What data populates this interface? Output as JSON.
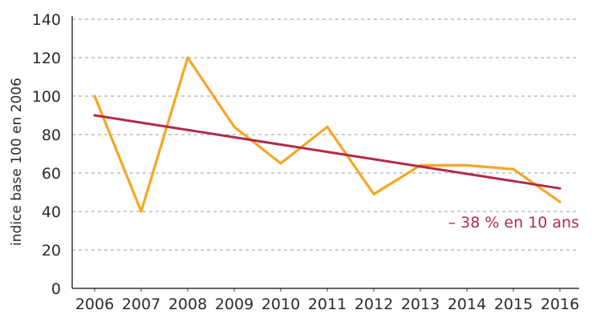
{
  "chart_data": {
    "type": "line",
    "title": "",
    "xlabel": "",
    "ylabel": "indice base 100 en 2006",
    "ylim": [
      0,
      140
    ],
    "yticks": [
      0,
      20,
      40,
      60,
      80,
      100,
      120,
      140
    ],
    "grid": true,
    "legend": "none",
    "categories": [
      "2006",
      "2007",
      "2008",
      "2009",
      "2010",
      "2011",
      "2012",
      "2013",
      "2014",
      "2015",
      "2016"
    ],
    "series": [
      {
        "values": [
          100,
          40,
          120,
          84,
          65,
          84,
          49,
          64,
          64,
          62,
          45
        ],
        "color": "#F5A623"
      },
      {
        "values": [
          90,
          86.2,
          82.4,
          78.6,
          74.8,
          71,
          67.2,
          63.4,
          59.6,
          55.8,
          52
        ],
        "color": "#B22A4A"
      }
    ],
    "annotation": {
      "text": "– 38 % en 10 ans",
      "color": "#B22A4A"
    }
  }
}
